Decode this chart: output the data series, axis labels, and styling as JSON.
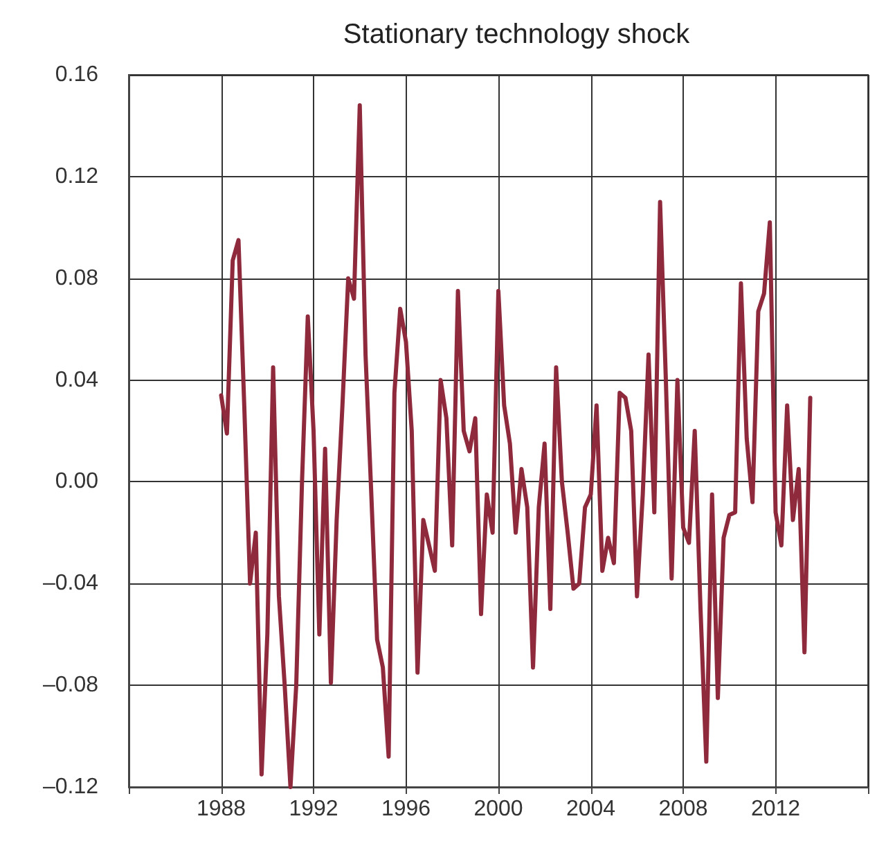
{
  "chart_data": {
    "type": "line",
    "title": "Stationary technology shock",
    "x": [
      1988,
      1988.25,
      1988.5,
      1988.75,
      1989,
      1989.25,
      1989.5,
      1989.75,
      1990,
      1990.25,
      1990.5,
      1990.75,
      1991,
      1991.25,
      1991.5,
      1991.75,
      1992,
      1992.25,
      1992.5,
      1992.75,
      1993,
      1993.25,
      1993.5,
      1993.75,
      1994,
      1994.25,
      1994.5,
      1994.75,
      1995,
      1995.25,
      1995.5,
      1995.75,
      1996,
      1996.25,
      1996.5,
      1996.75,
      1997,
      1997.25,
      1997.5,
      1997.75,
      1998,
      1998.25,
      1998.5,
      1998.75,
      1999,
      1999.25,
      1999.5,
      1999.75,
      2000,
      2000.25,
      2000.5,
      2000.75,
      2001,
      2001.25,
      2001.5,
      2001.75,
      2002,
      2002.25,
      2002.5,
      2002.75,
      2003,
      2003.25,
      2003.5,
      2003.75,
      2004,
      2004.25,
      2004.5,
      2004.75,
      2005,
      2005.25,
      2005.5,
      2005.75,
      2006,
      2006.25,
      2006.5,
      2006.75,
      2007,
      2007.25,
      2007.5,
      2007.75,
      2008,
      2008.25,
      2008.5,
      2008.75,
      2009,
      2009.25,
      2009.5,
      2009.75,
      2010,
      2010.25,
      2010.5,
      2010.75,
      2011,
      2011.25,
      2011.5,
      2011.75,
      2012,
      2012.25,
      2012.5,
      2012.75,
      2013,
      2013.25,
      2013.5
    ],
    "series": [
      {
        "color": "#8e2a3c",
        "values": [
          0.034,
          0.019,
          0.087,
          0.095,
          0.03,
          -0.04,
          -0.02,
          -0.115,
          -0.06,
          0.045,
          -0.045,
          -0.08,
          -0.12,
          -0.08,
          0.0,
          0.065,
          0.02,
          -0.06,
          0.013,
          -0.079,
          -0.015,
          0.03,
          0.08,
          0.072,
          0.148,
          0.05,
          -0.005,
          -0.062,
          -0.073,
          -0.108,
          0.035,
          0.068,
          0.055,
          0.02,
          -0.075,
          -0.015,
          -0.025,
          -0.035,
          0.04,
          0.025,
          -0.025,
          0.075,
          0.02,
          0.012,
          0.025,
          -0.052,
          -0.005,
          -0.02,
          0.075,
          0.03,
          0.015,
          -0.02,
          0.005,
          -0.01,
          -0.073,
          -0.01,
          0.015,
          -0.05,
          0.045,
          0.0,
          -0.02,
          -0.042,
          -0.04,
          -0.01,
          -0.005,
          0.03,
          -0.035,
          -0.022,
          -0.032,
          0.035,
          0.033,
          0.02,
          -0.045,
          -0.005,
          0.05,
          -0.012,
          0.11,
          0.04,
          -0.038,
          0.04,
          -0.018,
          -0.024,
          0.02,
          -0.05,
          -0.11,
          -0.005,
          -0.085,
          -0.022,
          -0.013,
          -0.012,
          0.078,
          0.017,
          -0.008,
          0.067,
          0.074,
          0.102,
          -0.012,
          -0.025,
          0.03,
          -0.015,
          0.005,
          -0.067,
          0.033
        ]
      }
    ],
    "xlim": [
      1984,
      2016
    ],
    "xticks": [
      {
        "value": 1984,
        "label": null
      },
      1988,
      1992,
      1996,
      2000,
      2004,
      2008,
      2012,
      {
        "value": 2016,
        "label": null
      }
    ],
    "ylim": [
      -0.12,
      0.16
    ],
    "yticks": [
      {
        "value": -0.12,
        "label": "–0.12"
      },
      {
        "value": -0.08,
        "label": "–0.08"
      },
      {
        "value": -0.04,
        "label": "–0.04"
      },
      {
        "value": 0,
        "label": "0.00"
      },
      {
        "value": 0.04,
        "label": "0.04"
      },
      {
        "value": 0.08,
        "label": "0.08"
      },
      {
        "value": 0.12,
        "label": "0.12"
      },
      {
        "value": 0.16,
        "label": "0.16"
      }
    ],
    "grid": true,
    "marker": "none",
    "line_style": "solid"
  }
}
